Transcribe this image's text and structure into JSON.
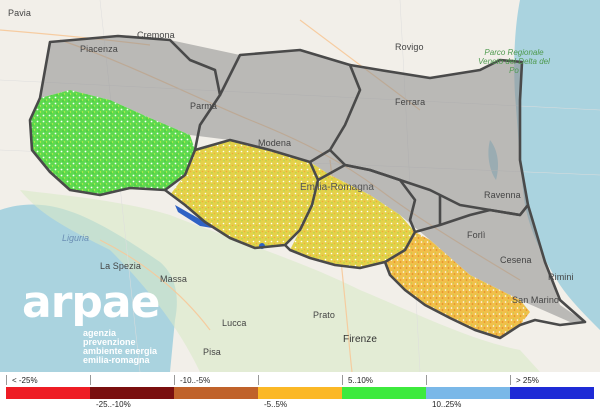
{
  "map": {
    "cities": [
      {
        "id": "pavia",
        "name": "Pavia"
      },
      {
        "id": "cremona",
        "name": "Cremona"
      },
      {
        "id": "piacenza",
        "name": "Piacenza"
      },
      {
        "id": "rovigo",
        "name": "Rovigo"
      },
      {
        "id": "parma",
        "name": "Parma"
      },
      {
        "id": "ferrara",
        "name": "Ferrara"
      },
      {
        "id": "modena",
        "name": "Modena"
      },
      {
        "id": "ravenna",
        "name": "Ravenna"
      },
      {
        "id": "forli",
        "name": "Forlì"
      },
      {
        "id": "cesena",
        "name": "Cesena"
      },
      {
        "id": "rimini",
        "name": "Rimini"
      },
      {
        "id": "san_marino",
        "name": "San Marino"
      },
      {
        "id": "la_spezia",
        "name": "La Spezia"
      },
      {
        "id": "massa",
        "name": "Massa"
      },
      {
        "id": "lucca",
        "name": "Lucca"
      },
      {
        "id": "prato",
        "name": "Prato"
      },
      {
        "id": "firenze",
        "name": "Firenze"
      },
      {
        "id": "pisa",
        "name": "Pisa"
      }
    ],
    "region_label": "Emilia-Romagna",
    "sea_label": "Liguria",
    "park_label": "Parco Regionale Veneto del Delta del Po",
    "colors": {
      "land": "#f2efe9",
      "sea": "#aad3df",
      "mask": "#8c8c8c",
      "border": "#4a4a4a"
    }
  },
  "logo": {
    "word": "arpae",
    "tagline_lines": [
      "agenzia",
      "prevenzione",
      "ambiente energia",
      "emilia-romagna"
    ]
  },
  "legend": {
    "items": [
      {
        "label": "< -25%",
        "color": "#ee1c24",
        "position": "up"
      },
      {
        "label": "-25..-10%",
        "color": "#7a0f0f",
        "position": "down"
      },
      {
        "label": "-10..-5%",
        "color": "#c0622a",
        "position": "up"
      },
      {
        "label": "-5..5%",
        "color": "#fbb826",
        "position": "down"
      },
      {
        "label": "5..10%",
        "color": "#3dea3d",
        "position": "up"
      },
      {
        "label": "10..25%",
        "color": "#7ab8e8",
        "position": "down"
      },
      {
        "label": "> 25%",
        "color": "#1e2bd6",
        "position": "up"
      }
    ]
  }
}
